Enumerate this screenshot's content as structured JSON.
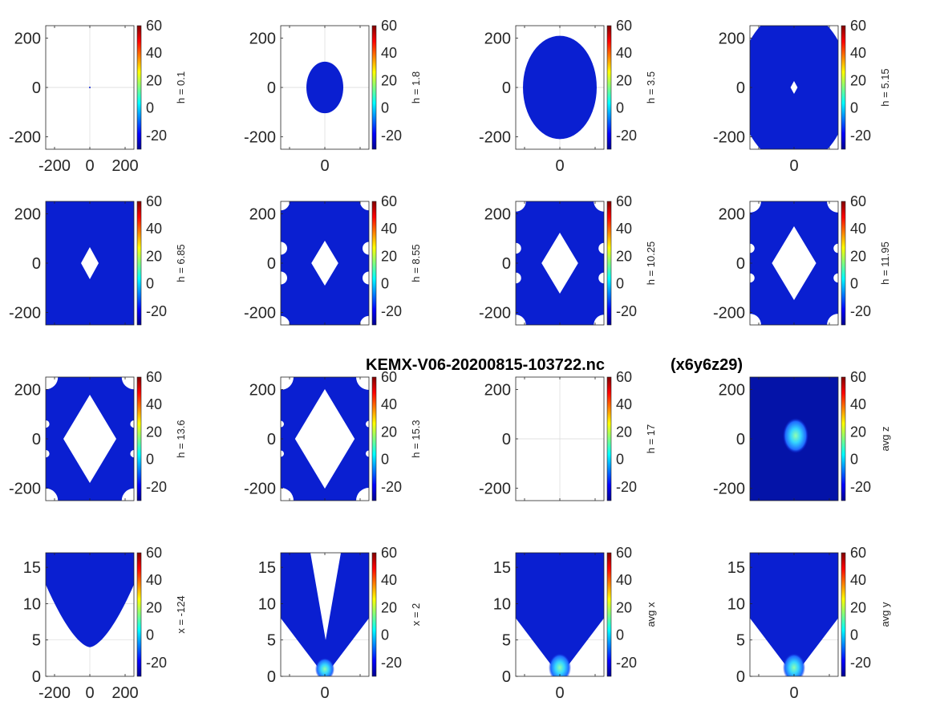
{
  "title": "KEMX-V06-20200815-103722.nc",
  "subtitle": "(x6y6z29)",
  "colors": {
    "fill": "#0a1fd1",
    "fill_dark": "#0413a8",
    "grid": "#d9d9d9",
    "axis": "#262626"
  },
  "colorbar": {
    "colormap": "jet",
    "range": [
      -30,
      60
    ],
    "ticks": [
      "60",
      "40",
      "20",
      "0",
      "-20"
    ]
  },
  "chart_data": [
    {
      "type": "heatmap",
      "view": "horizontal",
      "label": "h = 0.1",
      "xlim": [
        -250,
        250
      ],
      "ylim": [
        -250,
        250
      ],
      "x_ticks": [
        "-200",
        "0",
        "200"
      ],
      "y_ticks": [
        "200",
        "0",
        "-200"
      ],
      "shape": "point",
      "extent": [
        2,
        2
      ]
    },
    {
      "type": "heatmap",
      "view": "horizontal",
      "label": "h = 1.8",
      "xlim": [
        -250,
        250
      ],
      "ylim": [
        -250,
        250
      ],
      "x_ticks": [
        "0"
      ],
      "y_ticks": [
        "200",
        "0",
        "-200"
      ],
      "shape": "ellipse",
      "extent": [
        55,
        55
      ]
    },
    {
      "type": "heatmap",
      "view": "horizontal",
      "label": "h = 3.5",
      "xlim": [
        -250,
        250
      ],
      "ylim": [
        -250,
        250
      ],
      "x_ticks": [
        "0"
      ],
      "y_ticks": [
        "200",
        "0",
        "-200"
      ],
      "shape": "ellipse",
      "extent": [
        110,
        110
      ]
    },
    {
      "type": "heatmap",
      "view": "horizontal",
      "label": "h = 5.15",
      "xlim": [
        -250,
        250
      ],
      "ylim": [
        -250,
        250
      ],
      "x_ticks": [
        "0"
      ],
      "y_ticks": [
        "200",
        "0",
        "-200"
      ],
      "shape": "ellipse_hole",
      "extent": [
        165,
        165
      ],
      "hole": 8
    },
    {
      "type": "heatmap",
      "view": "horizontal",
      "label": "h = 6.85",
      "xlim": [
        -250,
        250
      ],
      "ylim": [
        -250,
        250
      ],
      "x_ticks": [],
      "y_ticks": [
        "200",
        "0",
        "-200"
      ],
      "shape": "ellipse_hole",
      "extent": [
        220,
        220
      ],
      "hole": 20
    },
    {
      "type": "heatmap",
      "view": "horizontal",
      "label": "h = 8.55",
      "xlim": [
        -250,
        250
      ],
      "ylim": [
        -250,
        250
      ],
      "x_ticks": [],
      "y_ticks": [
        "200",
        "0",
        "-200"
      ],
      "shape": "multi",
      "hole": 28
    },
    {
      "type": "heatmap",
      "view": "horizontal",
      "label": "h = 10.25",
      "xlim": [
        -250,
        250
      ],
      "ylim": [
        -250,
        250
      ],
      "x_ticks": [],
      "y_ticks": [
        "200",
        "0",
        "-200"
      ],
      "shape": "multi",
      "hole": 38
    },
    {
      "type": "heatmap",
      "view": "horizontal",
      "label": "h = 11.95",
      "xlim": [
        -250,
        250
      ],
      "ylim": [
        -250,
        250
      ],
      "x_ticks": [],
      "y_ticks": [
        "200",
        "0",
        "-200"
      ],
      "shape": "multi",
      "hole": 46
    },
    {
      "type": "heatmap",
      "view": "horizontal",
      "label": "h = 13.6",
      "xlim": [
        -250,
        250
      ],
      "ylim": [
        -250,
        250
      ],
      "x_ticks": [],
      "y_ticks": [
        "200",
        "0",
        "-200"
      ],
      "shape": "multi",
      "hole": 55
    },
    {
      "type": "heatmap",
      "view": "horizontal",
      "label": "h = 15.3",
      "xlim": [
        -250,
        250
      ],
      "ylim": [
        -250,
        250
      ],
      "x_ticks": [],
      "y_ticks": [
        "200",
        "0",
        "-200"
      ],
      "shape": "multi",
      "hole": 62
    },
    {
      "type": "heatmap",
      "view": "horizontal",
      "label": "h = 17",
      "xlim": [
        -250,
        250
      ],
      "ylim": [
        -250,
        250
      ],
      "x_ticks": [],
      "y_ticks": [
        "200",
        "0",
        "-200"
      ],
      "shape": "empty"
    },
    {
      "type": "heatmap",
      "view": "horizontal",
      "label": "avg z",
      "xlim": [
        -250,
        250
      ],
      "ylim": [
        -250,
        250
      ],
      "x_ticks": [],
      "y_ticks": [
        "200",
        "0",
        "-200"
      ],
      "shape": "avgz",
      "extent": [
        230,
        230
      ]
    },
    {
      "type": "heatmap",
      "view": "vertical",
      "label": "x = -124",
      "xlim": [
        -250,
        250
      ],
      "ylim": [
        0,
        17
      ],
      "x_ticks": [
        "-200",
        "0",
        "200"
      ],
      "y_ticks": [
        "15",
        "10",
        "5",
        "0"
      ],
      "shape": "vx"
    },
    {
      "type": "heatmap",
      "view": "vertical",
      "label": "x = 2",
      "xlim": [
        -250,
        250
      ],
      "ylim": [
        0,
        17
      ],
      "x_ticks": [
        "0"
      ],
      "y_ticks": [
        "15",
        "10",
        "5",
        "0"
      ],
      "shape": "vv"
    },
    {
      "type": "heatmap",
      "view": "vertical",
      "label": "avg x",
      "xlim": [
        -250,
        250
      ],
      "ylim": [
        0,
        17
      ],
      "x_ticks": [
        "0"
      ],
      "y_ticks": [
        "15",
        "10",
        "5",
        "0"
      ],
      "shape": "vavg"
    },
    {
      "type": "heatmap",
      "view": "vertical",
      "label": "avg y",
      "xlim": [
        -250,
        250
      ],
      "ylim": [
        0,
        17
      ],
      "x_ticks": [
        "0"
      ],
      "y_ticks": [
        "15",
        "10",
        "5",
        "0"
      ],
      "shape": "vavg"
    }
  ]
}
